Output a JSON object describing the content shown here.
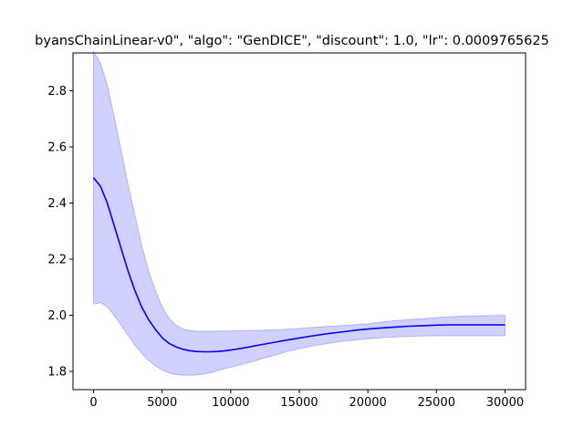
{
  "chart_data": {
    "type": "line",
    "title": "byansChainLinear-v0\", \"algo\": \"GenDICE\", \"discount\": 1.0, \"lr\": 0.0009765625",
    "xlabel": "",
    "ylabel": "",
    "xlim": [
      -1500,
      31500
    ],
    "ylim": [
      1.735,
      2.935
    ],
    "grid": false,
    "xticks": [
      0,
      5000,
      10000,
      15000,
      20000,
      25000,
      30000
    ],
    "yticks": [
      1.8,
      2.0,
      2.2,
      2.4,
      2.6,
      2.8
    ],
    "colors": {
      "line": "#0000ff",
      "band": "#0000ff"
    },
    "series": [
      {
        "x": [
          0,
          500,
          1000,
          1500,
          2000,
          2500,
          3000,
          3500,
          4000,
          4500,
          5000,
          5500,
          6000,
          6500,
          7000,
          7500,
          8000,
          8500,
          9000,
          9500,
          10000,
          11000,
          12000,
          13000,
          14000,
          15000,
          16000,
          17000,
          18000,
          19000,
          20000,
          21000,
          22000,
          23000,
          24000,
          25000,
          26000,
          27000,
          28000,
          29000,
          30000
        ],
        "mean": [
          2.49,
          2.46,
          2.4,
          2.32,
          2.24,
          2.16,
          2.09,
          2.03,
          1.985,
          1.95,
          1.92,
          1.9,
          1.888,
          1.879,
          1.874,
          1.871,
          1.87,
          1.87,
          1.871,
          1.873,
          1.876,
          1.884,
          1.893,
          1.902,
          1.911,
          1.919,
          1.927,
          1.934,
          1.94,
          1.946,
          1.951,
          1.955,
          1.958,
          1.961,
          1.963,
          1.965,
          1.966,
          1.966,
          1.966,
          1.966,
          1.966
        ],
        "upper": [
          2.94,
          2.9,
          2.82,
          2.71,
          2.59,
          2.47,
          2.36,
          2.25,
          2.16,
          2.09,
          2.03,
          1.99,
          1.965,
          1.952,
          1.946,
          1.943,
          1.943,
          1.943,
          1.944,
          1.944,
          1.944,
          1.945,
          1.946,
          1.948,
          1.95,
          1.953,
          1.957,
          1.96,
          1.963,
          1.966,
          1.97,
          1.976,
          1.981,
          1.985,
          1.988,
          1.992,
          1.995,
          1.997,
          1.998,
          1.999,
          2.0
        ],
        "lower": [
          2.04,
          2.045,
          2.03,
          2.0,
          1.965,
          1.93,
          1.895,
          1.865,
          1.84,
          1.82,
          1.805,
          1.795,
          1.789,
          1.786,
          1.786,
          1.787,
          1.79,
          1.795,
          1.802,
          1.809,
          1.815,
          1.827,
          1.841,
          1.855,
          1.869,
          1.881,
          1.891,
          1.899,
          1.906,
          1.912,
          1.916,
          1.92,
          1.923,
          1.925,
          1.926,
          1.927,
          1.927,
          1.927,
          1.927,
          1.927,
          1.927
        ]
      }
    ]
  }
}
